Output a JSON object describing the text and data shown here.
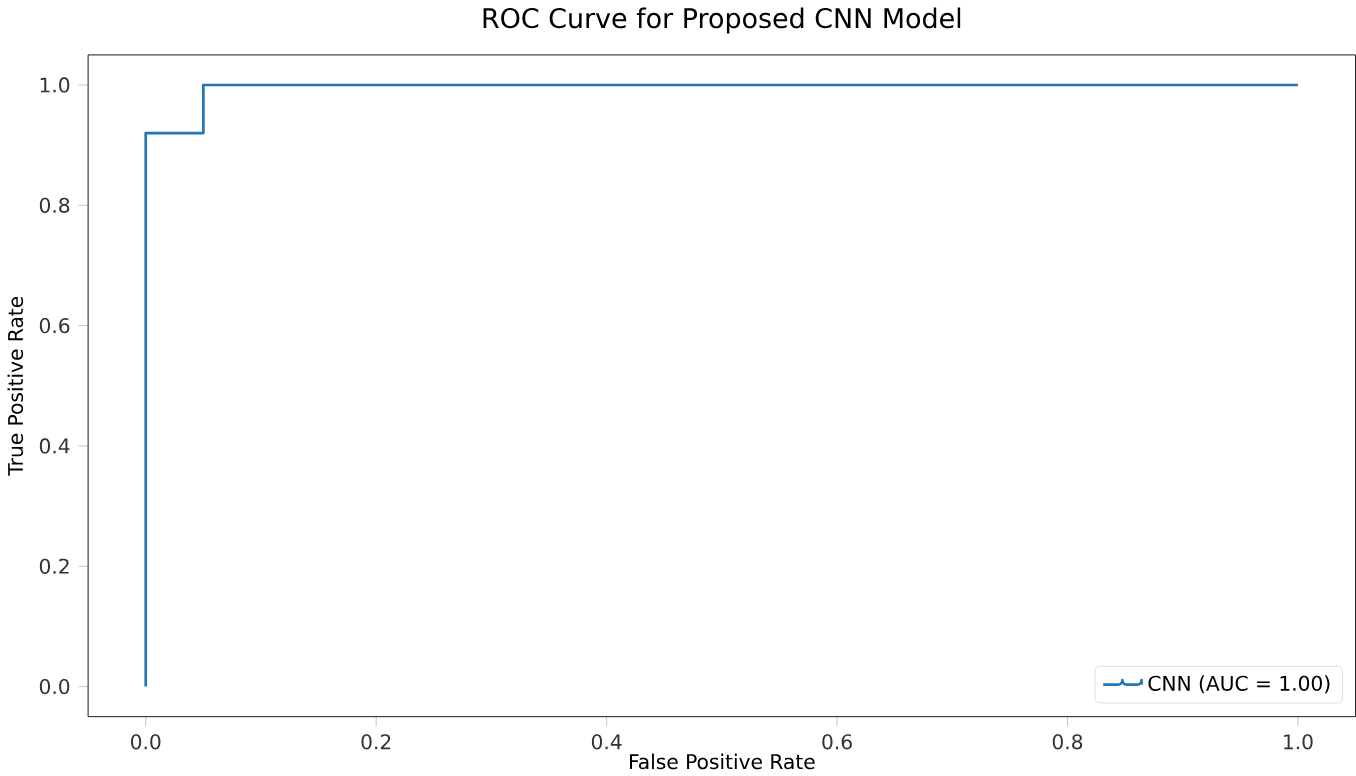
{
  "chart_data": {
    "type": "step",
    "title": "ROC Curve for Proposed CNN Model",
    "xlabel": "False Positive Rate",
    "ylabel": "True Positive Rate",
    "series": [
      {
        "name": "CNN (AUC = 1.00)",
        "color": "#1f77b4",
        "x": [
          0,
          0,
          0.05,
          0.05,
          1
        ],
        "values": [
          0,
          0.92,
          0.92,
          1,
          1
        ]
      }
    ],
    "xlim": [
      -0.05,
      1.05
    ],
    "ylim": [
      -0.05,
      1.05
    ],
    "xticks": [
      {
        "value": 0,
        "label": "0.0"
      },
      {
        "value": 0.2,
        "label": "0.2"
      },
      {
        "value": 0.4,
        "label": "0.4"
      },
      {
        "value": 0.6,
        "label": "0.6"
      },
      {
        "value": 0.8,
        "label": "0.8"
      },
      {
        "value": 1,
        "label": "1.0"
      }
    ],
    "yticks": [
      {
        "value": 0,
        "label": "0.0"
      },
      {
        "value": 0.2,
        "label": "0.2"
      },
      {
        "value": 0.4,
        "label": "0.4"
      },
      {
        "value": 0.6,
        "label": "0.6"
      },
      {
        "value": 0.8,
        "label": "0.8"
      },
      {
        "value": 1,
        "label": "1.0"
      }
    ],
    "legend": "bottom right",
    "grid": false
  }
}
